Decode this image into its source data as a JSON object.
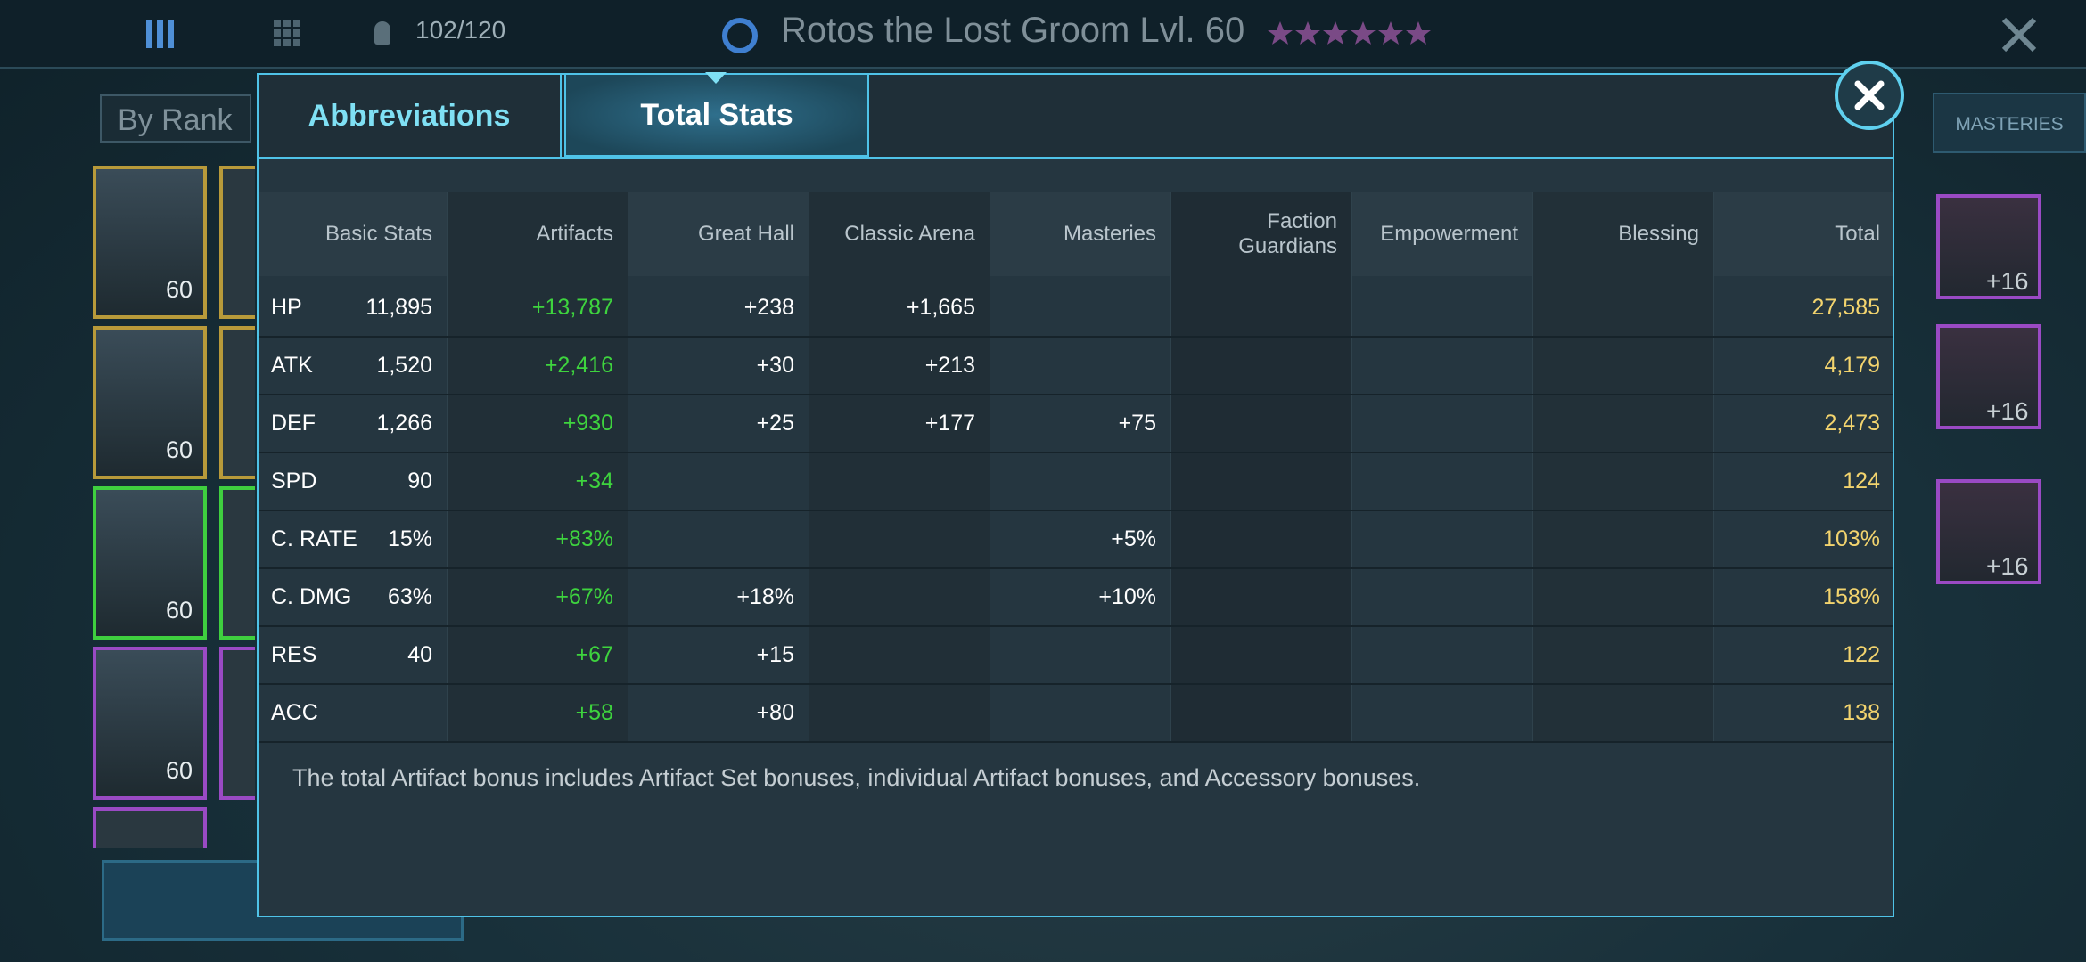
{
  "header": {
    "capacity": "102/120",
    "title": "Rotos the Lost Groom Lvl. 60"
  },
  "background": {
    "sort": "By Rank",
    "tab": "MASTERIES",
    "levels": [
      "60",
      "60",
      "60",
      "60"
    ],
    "gear": [
      "+16",
      "+16",
      "+16"
    ]
  },
  "tabs": [
    "Abbreviations",
    "Total Stats"
  ],
  "table": {
    "columns": [
      "Basic Stats",
      "Artifacts",
      "Great Hall",
      "Classic Arena",
      "Masteries",
      "Faction Guardians",
      "Empowerment",
      "Blessing",
      "Total"
    ],
    "rows": [
      [
        "HP",
        "11,895",
        "+13,787",
        "+238",
        "+1,665",
        null,
        null,
        null,
        null,
        "27,585"
      ],
      [
        "ATK",
        "1,520",
        "+2,416",
        "+30",
        "+213",
        null,
        null,
        null,
        null,
        "4,179"
      ],
      [
        "DEF",
        "1,266",
        "+930",
        "+25",
        "+177",
        "+75",
        null,
        null,
        null,
        "2,473"
      ],
      [
        "SPD",
        "90",
        "+34",
        null,
        null,
        null,
        null,
        null,
        null,
        "124"
      ],
      [
        "C. RATE",
        "15%",
        "+83%",
        null,
        null,
        "+5%",
        null,
        null,
        null,
        "103%"
      ],
      [
        "C. DMG",
        "63%",
        "+67%",
        "+18%",
        null,
        "+10%",
        null,
        null,
        null,
        "158%"
      ],
      [
        "RES",
        "40",
        "+67",
        "+15",
        null,
        null,
        null,
        null,
        null,
        "122"
      ],
      [
        "ACC",
        null,
        "+58",
        "+80",
        null,
        null,
        null,
        null,
        null,
        "138"
      ]
    ]
  },
  "note": "The total Artifact bonus includes Artifact Set bonuses, individual Artifact bonuses, and Accessory bonuses."
}
